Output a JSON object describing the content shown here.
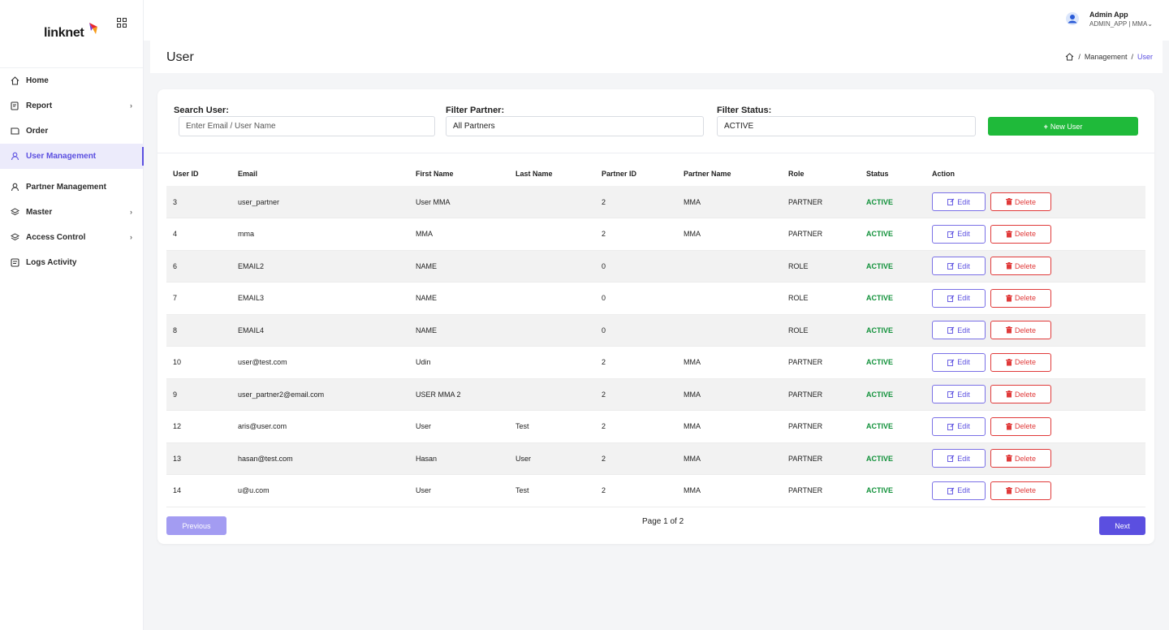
{
  "brand": {
    "logo_text": "linknet"
  },
  "sidebar": {
    "items": [
      {
        "label": "Home",
        "icon": "home-icon"
      },
      {
        "label": "Report",
        "icon": "report-icon",
        "has_children": true
      },
      {
        "label": "Order",
        "icon": "order-icon"
      },
      {
        "label": "User Management",
        "icon": "user-icon",
        "active": true
      },
      {
        "label": "Partner Management",
        "icon": "partner-icon"
      },
      {
        "label": "Master",
        "icon": "layers-icon",
        "has_children": true
      },
      {
        "label": "Access Control",
        "icon": "layers-icon",
        "has_children": true
      },
      {
        "label": "Logs Activity",
        "icon": "logs-icon"
      }
    ]
  },
  "topbar": {
    "user_name": "Admin App",
    "user_sub": "ADMIN_APP | MMA"
  },
  "page": {
    "title": "User",
    "breadcrumb": [
      "Management",
      "User"
    ]
  },
  "filters": {
    "search_label": "Search User:",
    "search_placeholder": "Enter Email / User Name",
    "partner_label": "Filter Partner:",
    "partner_value": "All Partners",
    "status_label": "Filter Status:",
    "status_value": "ACTIVE",
    "new_user_label": "New User"
  },
  "table": {
    "headers": [
      "User ID",
      "Email",
      "First Name",
      "Last Name",
      "Partner ID",
      "Partner Name",
      "Role",
      "Status",
      "Action"
    ],
    "edit_label": "Edit",
    "delete_label": "Delete",
    "rows": [
      {
        "id": "3",
        "email": "user_partner",
        "first": "User MMA",
        "last": "",
        "pid": "2",
        "pname": "MMA",
        "role": "PARTNER",
        "status": "ACTIVE"
      },
      {
        "id": "4",
        "email": "mma",
        "first": "MMA",
        "last": "",
        "pid": "2",
        "pname": "MMA",
        "role": "PARTNER",
        "status": "ACTIVE"
      },
      {
        "id": "6",
        "email": "EMAIL2",
        "first": "NAME",
        "last": "",
        "pid": "0",
        "pname": "",
        "role": "ROLE",
        "status": "ACTIVE"
      },
      {
        "id": "7",
        "email": "EMAIL3",
        "first": "NAME",
        "last": "",
        "pid": "0",
        "pname": "",
        "role": "ROLE",
        "status": "ACTIVE"
      },
      {
        "id": "8",
        "email": "EMAIL4",
        "first": "NAME",
        "last": "",
        "pid": "0",
        "pname": "",
        "role": "ROLE",
        "status": "ACTIVE"
      },
      {
        "id": "10",
        "email": "user@test.com",
        "first": "Udin",
        "last": "",
        "pid": "2",
        "pname": "MMA",
        "role": "PARTNER",
        "status": "ACTIVE"
      },
      {
        "id": "9",
        "email": "user_partner2@email.com",
        "first": "USER MMA 2",
        "last": "",
        "pid": "2",
        "pname": "MMA",
        "role": "PARTNER",
        "status": "ACTIVE"
      },
      {
        "id": "12",
        "email": "aris@user.com",
        "first": "User",
        "last": "Test",
        "pid": "2",
        "pname": "MMA",
        "role": "PARTNER",
        "status": "ACTIVE"
      },
      {
        "id": "13",
        "email": "hasan@test.com",
        "first": "Hasan",
        "last": "User",
        "pid": "2",
        "pname": "MMA",
        "role": "PARTNER",
        "status": "ACTIVE"
      },
      {
        "id": "14",
        "email": "u@u.com",
        "first": "User",
        "last": "Test",
        "pid": "2",
        "pname": "MMA",
        "role": "PARTNER",
        "status": "ACTIVE"
      }
    ]
  },
  "pagination": {
    "prev_label": "Previous",
    "next_label": "Next",
    "info": "Page 1 of 2"
  },
  "colors": {
    "accent": "#5b4fe0",
    "success": "#1fba3a",
    "danger": "#e03a3a",
    "status_active": "#11913a"
  }
}
